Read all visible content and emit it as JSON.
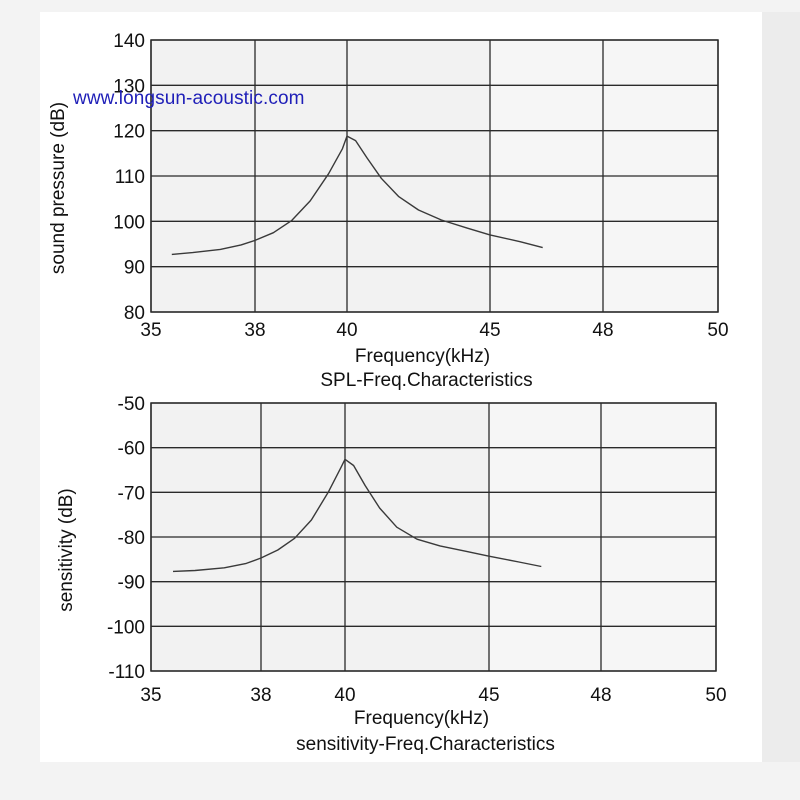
{
  "watermark": "www.longsun-acoustic.com",
  "colors": {
    "grid": "#2a2a2a",
    "curve": "#3a3a3a",
    "background": "#ffffff",
    "plot_bg": "#f2f2f2"
  },
  "chart_data": [
    {
      "type": "line",
      "title": "SPL-Freq.Characteristics",
      "xlabel": "Frequency(kHz)",
      "ylabel": "sound pressure (dB)",
      "x_tick_labels": [
        "35",
        "38",
        "40",
        "45",
        "48",
        "50"
      ],
      "y_ticks": [
        140,
        130,
        120,
        110,
        100,
        90,
        80
      ],
      "ylim": [
        80,
        140
      ],
      "grid": true,
      "series": [
        {
          "x": [
            35.6,
            36.2,
            37.0,
            37.6,
            38.0,
            38.4,
            38.8,
            39.2,
            39.6,
            39.9,
            40.0,
            40.3,
            40.7,
            41.2,
            41.8,
            42.5,
            43.3,
            44.2,
            45.0,
            45.8,
            46.4
          ],
          "y": [
            92.7,
            93.1,
            93.8,
            94.8,
            95.8,
            97.5,
            100.2,
            104.5,
            110.5,
            116.0,
            118.8,
            117.8,
            114.0,
            109.5,
            105.5,
            102.5,
            100.3,
            98.5,
            97.0,
            95.5,
            94.2
          ]
        }
      ]
    },
    {
      "type": "line",
      "title": "sensitivity-Freq.Characteristics",
      "xlabel": "Frequency(kHz)",
      "ylabel": "sensitivity (dB)",
      "x_tick_labels": [
        "35",
        "38",
        "40",
        "45",
        "48",
        "50"
      ],
      "y_ticks": [
        -50,
        -60,
        -70,
        -80,
        -90,
        -100,
        -110
      ],
      "ylim": [
        -110,
        -50
      ],
      "grid": true,
      "series": [
        {
          "x": [
            35.6,
            36.2,
            37.0,
            37.6,
            38.0,
            38.4,
            38.8,
            39.2,
            39.6,
            39.9,
            40.0,
            40.3,
            40.7,
            41.2,
            41.8,
            42.5,
            43.3,
            44.2,
            45.0,
            45.8,
            46.4
          ],
          "y": [
            -87.7,
            -87.5,
            -86.9,
            -85.9,
            -84.7,
            -82.9,
            -80.3,
            -76.2,
            -70.0,
            -64.5,
            -62.6,
            -64.0,
            -68.5,
            -73.5,
            -77.8,
            -80.5,
            -82.0,
            -83.2,
            -84.3,
            -85.6,
            -86.6
          ]
        }
      ]
    }
  ]
}
